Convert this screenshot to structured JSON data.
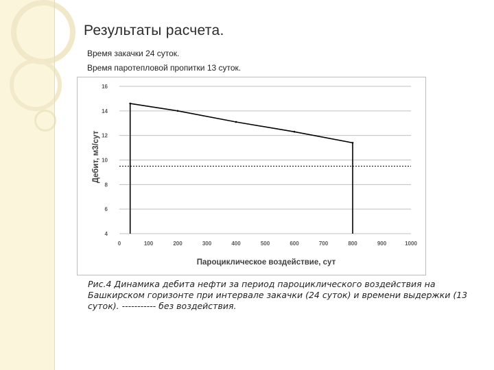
{
  "slide": {
    "title": "Результаты расчета.",
    "line1": "Время закачки 24 суток.",
    "line2": "Время паротепловой пропитки 13 суток.",
    "caption": "Рис.4 Динамика дебита нефти за период пароциклического воздействия на Башкирском горизонте при интервале закачки (24 суток) и времени выдержки (13 суток). ----------- без воздействия."
  },
  "colors": {
    "background_band": "#fbf5dc",
    "line": "#000000",
    "grid": "#bfbfbf",
    "tick_text": "#595959"
  },
  "chart_data": {
    "type": "line",
    "xlabel": "Пароциклическое воздействие, сут",
    "ylabel": "Дебит, м3/сут",
    "xlim": [
      0,
      1000
    ],
    "ylim": [
      4,
      16
    ],
    "xticks": [
      0,
      100,
      200,
      300,
      400,
      500,
      600,
      700,
      800,
      900,
      1000
    ],
    "yticks": [
      4,
      6,
      8,
      10,
      12,
      14,
      16
    ],
    "grid": true,
    "legend": "none",
    "series": [
      {
        "x": [
          37,
          37,
          200,
          400,
          600,
          800,
          800
        ],
        "y": [
          4,
          14.6,
          14.0,
          13.1,
          12.3,
          11.4,
          4
        ],
        "style": "solid"
      },
      {
        "x": [
          0,
          1000
        ],
        "y": [
          9.5,
          9.5
        ],
        "style": "dashed"
      }
    ]
  }
}
